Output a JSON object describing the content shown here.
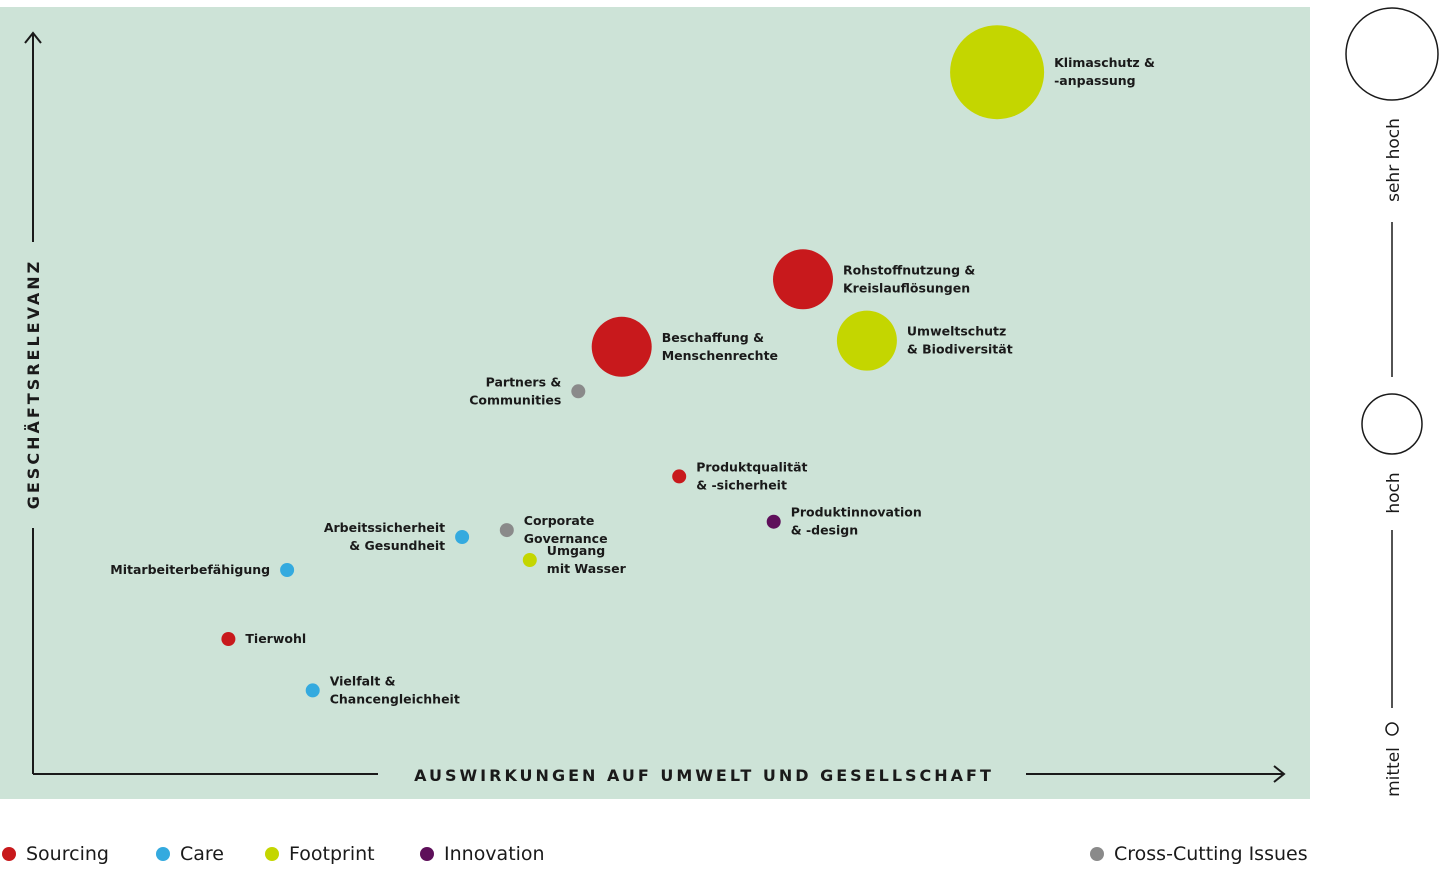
{
  "colors": {
    "background_panel": "#cde3d7",
    "sourcing": "#c8191c",
    "care": "#34aadf",
    "footprint": "#c4d600",
    "innovation": "#5e0f5a",
    "cross_cutting": "#8a8a8a",
    "axis": "#1a1a1a"
  },
  "legend": {
    "items": [
      {
        "key": "sourcing",
        "label": "Sourcing"
      },
      {
        "key": "care",
        "label": "Care"
      },
      {
        "key": "footprint",
        "label": "Footprint"
      },
      {
        "key": "innovation",
        "label": "Innovation"
      },
      {
        "key": "cross_cutting",
        "label": "Cross-Cutting Issues"
      }
    ]
  },
  "size_legend": {
    "levels": [
      "sehr hoch",
      "hoch",
      "mittel"
    ]
  },
  "chart_data": {
    "type": "scatter",
    "xlabel": "AUSWIRKUNGEN AUF UMWELT UND GESELLSCHAFT",
    "ylabel": "GESCHÄFTSRELEVANZ",
    "xlim": [
      0,
      100
    ],
    "ylim": [
      0,
      100
    ],
    "grid": false,
    "legend_position": "bottom",
    "points": [
      {
        "label": [
          "Klimaschutz &",
          "-anpassung"
        ],
        "category": "footprint",
        "size": "sehr hoch",
        "x": 75.5,
        "y": 91.5,
        "label_side": "right"
      },
      {
        "label": [
          "Rohstoffnutzung &",
          "Kreislauflösungen"
        ],
        "category": "sourcing",
        "size": "sehr hoch",
        "x": 60.3,
        "y": 64.5,
        "label_side": "right"
      },
      {
        "label": [
          "Umweltschutz",
          "& Biodiversität"
        ],
        "category": "footprint",
        "size": "sehr hoch",
        "x": 65.3,
        "y": 56.5,
        "label_side": "right"
      },
      {
        "label": [
          "Beschaffung &",
          "Menschenrechte"
        ],
        "category": "sourcing",
        "size": "sehr hoch",
        "x": 46.1,
        "y": 55.7,
        "label_side": "right"
      },
      {
        "label": [
          "Partners &",
          "Communities"
        ],
        "category": "cross_cutting",
        "size": "mittel",
        "x": 42.7,
        "y": 49.9,
        "label_side": "left"
      },
      {
        "label": [
          "Produktqualität",
          "& -sicherheit"
        ],
        "category": "sourcing",
        "size": "mittel",
        "x": 50.6,
        "y": 38.8,
        "label_side": "right"
      },
      {
        "label": [
          "Produktinnovation",
          "& -design"
        ],
        "category": "innovation",
        "size": "mittel",
        "x": 58.0,
        "y": 32.9,
        "label_side": "right"
      },
      {
        "label": [
          "Corporate",
          "Governance"
        ],
        "category": "cross_cutting",
        "size": "mittel",
        "x": 37.1,
        "y": 31.8,
        "label_side": "right"
      },
      {
        "label": [
          "Arbeitssicherheit",
          "& Gesundheit"
        ],
        "category": "care",
        "size": "mittel",
        "x": 33.6,
        "y": 30.9,
        "label_side": "left"
      },
      {
        "label": [
          "Umgang",
          "mit Wasser"
        ],
        "category": "footprint",
        "size": "mittel",
        "x": 38.9,
        "y": 27.9,
        "label_side": "right"
      },
      {
        "label": [
          "Mitarbeiterbefähigung"
        ],
        "category": "care",
        "size": "mittel",
        "x": 19.9,
        "y": 26.6,
        "label_side": "left"
      },
      {
        "label": [
          "Tierwohl"
        ],
        "category": "sourcing",
        "size": "mittel",
        "x": 15.3,
        "y": 17.6,
        "label_side": "right"
      },
      {
        "label": [
          "Vielfalt &",
          "Chancengleichheit"
        ],
        "category": "care",
        "size": "mittel",
        "x": 21.9,
        "y": 10.9,
        "label_side": "right"
      }
    ]
  }
}
